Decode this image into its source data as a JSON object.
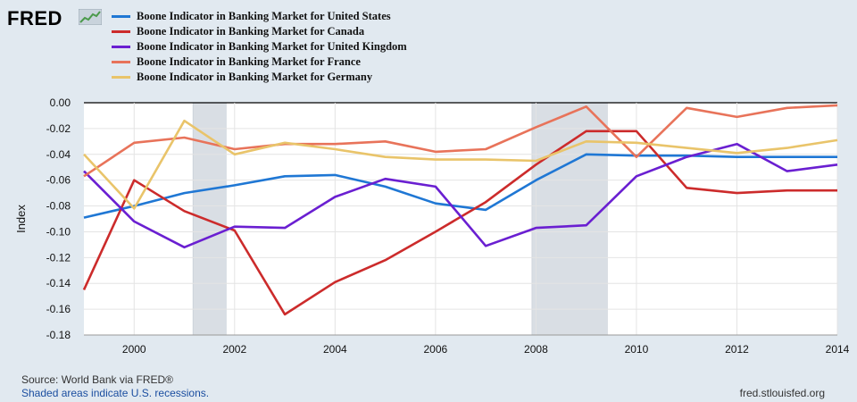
{
  "header": {
    "logo_text": "FRED"
  },
  "footer": {
    "source": "Source: World Bank via FRED®",
    "recession_note": "Shaded areas indicate U.S. recessions.",
    "site": "fred.stlouisfed.org"
  },
  "colors": {
    "background": "#e1e9f0",
    "plot": "#ffffff",
    "recession": "#d9dee4"
  },
  "chart_data": {
    "type": "line",
    "title": "",
    "xlabel": "",
    "ylabel": "Index",
    "xlim": [
      1999,
      2014
    ],
    "ylim": [
      -0.18,
      0.0
    ],
    "x_ticks": [
      2000,
      2002,
      2004,
      2006,
      2008,
      2010,
      2012,
      2014
    ],
    "x_tick_labels": [
      "2000",
      "2002",
      "2004",
      "2006",
      "2008",
      "2010",
      "2012",
      "2014"
    ],
    "y_ticks": [
      0.0,
      -0.02,
      -0.04,
      -0.06,
      -0.08,
      -0.1,
      -0.12,
      -0.14,
      -0.16,
      -0.18
    ],
    "y_tick_labels": [
      "0.00",
      "-0.02",
      "-0.04",
      "-0.06",
      "-0.08",
      "-0.10",
      "-0.12",
      "-0.14",
      "-0.16",
      "-0.18"
    ],
    "grid": true,
    "recessions": [
      [
        2001.17,
        2001.83
      ],
      [
        2007.92,
        2009.42
      ]
    ],
    "x": [
      1999,
      2000,
      2001,
      2002,
      2003,
      2004,
      2005,
      2006,
      2007,
      2008,
      2009,
      2010,
      2011,
      2012,
      2013,
      2014
    ],
    "series": [
      {
        "name": "Boone Indicator in Banking Market for United States",
        "color": "#1f77d4",
        "values": [
          -0.089,
          -0.08,
          -0.07,
          -0.064,
          -0.057,
          -0.056,
          -0.065,
          -0.078,
          -0.083,
          -0.06,
          -0.04,
          -0.041,
          -0.041,
          -0.042,
          -0.042,
          -0.042
        ]
      },
      {
        "name": "Boone Indicator in Banking Market for Canada",
        "color": "#cc2b2b",
        "values": [
          -0.145,
          -0.06,
          -0.084,
          -0.099,
          -0.164,
          -0.139,
          -0.122,
          -0.1,
          -0.077,
          -0.048,
          -0.022,
          -0.022,
          -0.066,
          -0.07,
          -0.068,
          -0.068
        ]
      },
      {
        "name": "Boone Indicator in Banking Market for United Kingdom",
        "color": "#6a1fd1",
        "values": [
          -0.053,
          -0.092,
          -0.112,
          -0.096,
          -0.097,
          -0.073,
          -0.059,
          -0.065,
          -0.111,
          -0.097,
          -0.095,
          -0.057,
          -0.042,
          -0.032,
          -0.053,
          -0.048
        ]
      },
      {
        "name": "Boone Indicator in Banking Market for France",
        "color": "#e8735a",
        "values": [
          -0.057,
          -0.031,
          -0.027,
          -0.036,
          -0.032,
          -0.032,
          -0.03,
          -0.038,
          -0.036,
          -0.019,
          -0.003,
          -0.042,
          -0.004,
          -0.011,
          -0.004,
          -0.002
        ]
      },
      {
        "name": "Boone Indicator in Banking Market for Germany",
        "color": "#e9c46a",
        "values": [
          -0.04,
          -0.082,
          -0.014,
          -0.04,
          -0.031,
          -0.036,
          -0.042,
          -0.044,
          -0.044,
          -0.045,
          -0.03,
          -0.031,
          -0.035,
          -0.039,
          -0.035,
          -0.029
        ]
      }
    ]
  }
}
